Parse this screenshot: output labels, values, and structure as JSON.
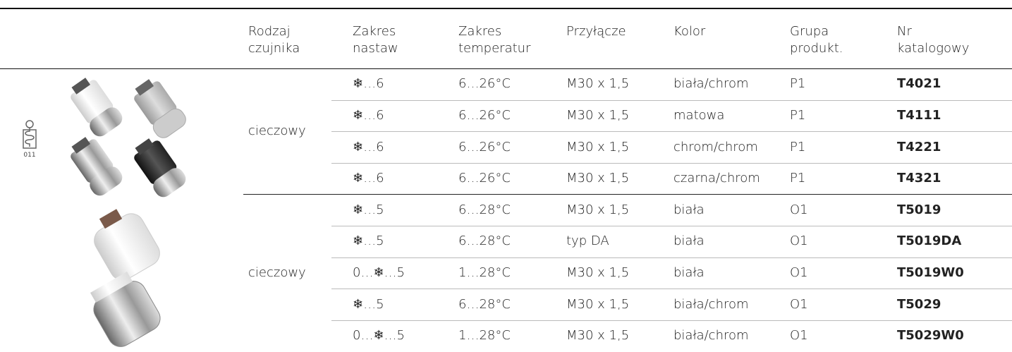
{
  "header": [
    [
      "Rodzaj",
      "czujnika"
    ],
    [
      "Zakres",
      "nastaw"
    ],
    [
      "Zakres",
      "temperatur"
    ],
    [
      "Przyłącze"
    ],
    [
      "Kolor"
    ],
    [
      "Grupa",
      "produkt."
    ],
    [
      "Nr",
      "katalogowy"
    ]
  ],
  "sensor_icon_label": "011",
  "groups": [
    {
      "sensor": "cieczowy",
      "rows": [
        [
          "❄…6",
          "6…26°C",
          "M30 x 1,5",
          "biała/chrom",
          "P1",
          "T4021"
        ],
        [
          "❄…6",
          "6…26°C",
          "M30 x 1,5",
          "matowa",
          "P1",
          "T4111"
        ],
        [
          "❄…6",
          "6…26°C",
          "M30 x 1,5",
          "chrom/chrom",
          "P1",
          "T4221"
        ],
        [
          "❄…6",
          "6…26°C",
          "M30 x 1,5",
          "czarna/chrom",
          "P1",
          "T4321"
        ]
      ]
    },
    {
      "sensor": "cieczowy",
      "rows": [
        [
          "❄…5",
          "6…28°C",
          "M30 x 1,5",
          "biała",
          "O1",
          "T5019"
        ],
        [
          "❄…5",
          "6…28°C",
          "typ DA",
          "biała",
          "O1",
          "T5019DA"
        ],
        [
          "0…❄…5",
          "1…28°C",
          "M30 x 1,5",
          "biała",
          "O1",
          "T5019W0"
        ],
        [
          "❄…5",
          "6…28°C",
          "M30 x 1,5",
          "biała/chrom",
          "O1",
          "T5029"
        ],
        [
          "0…❄…5",
          "1…28°C",
          "M30 x 1,5",
          "biała/chrom",
          "O1",
          "T5029W0"
        ]
      ]
    }
  ]
}
